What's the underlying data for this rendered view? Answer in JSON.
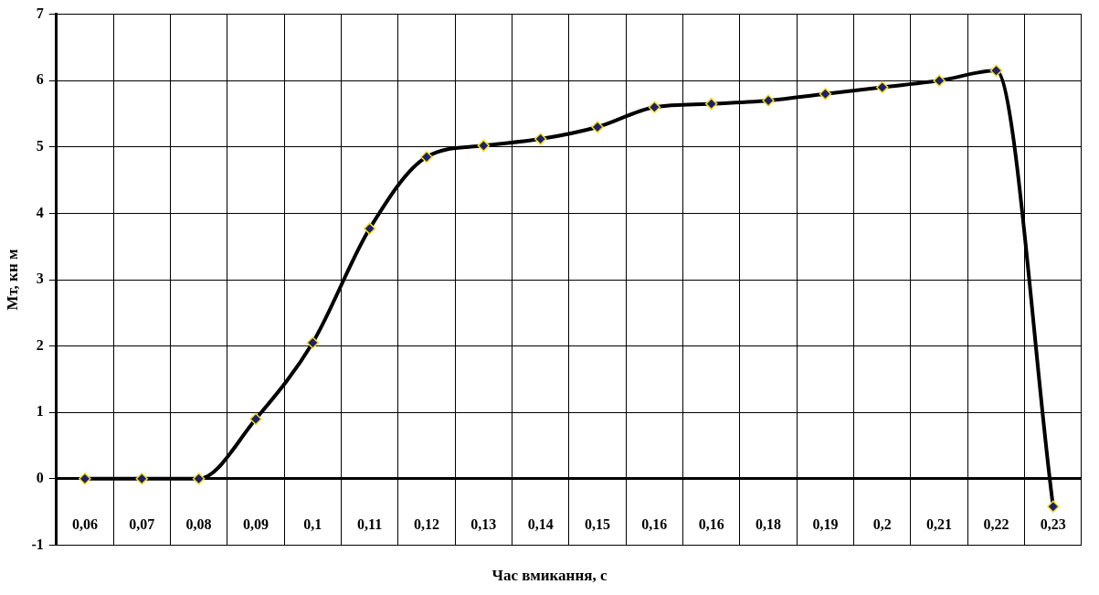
{
  "chart_data": {
    "type": "line",
    "xlabel": "Час вмикання, с",
    "ylabel": "Мт, кн м",
    "categories": [
      "0,06",
      "0,07",
      "0,08",
      "0,09",
      "0,1",
      "0,11",
      "0,12",
      "0,13",
      "0,14",
      "0,15",
      "0,16",
      "0,16",
      "0,18",
      "0,19",
      "0,2",
      "0,21",
      "0,22",
      "0,23"
    ],
    "series": [
      {
        "color": "#000000",
        "values": [
          0,
          0,
          0,
          0.9,
          2.05,
          3.77,
          4.85,
          5.02,
          5.12,
          5.3,
          5.6,
          5.65,
          5.7,
          5.8,
          5.9,
          6.0,
          6.15,
          -0.42
        ]
      }
    ],
    "ylim": [
      -1,
      7
    ],
    "yticks": [
      -1,
      0,
      1,
      2,
      3,
      4,
      5,
      6,
      7
    ],
    "grid": true,
    "legend": false,
    "marker": "diamond",
    "line_style": "solid"
  }
}
